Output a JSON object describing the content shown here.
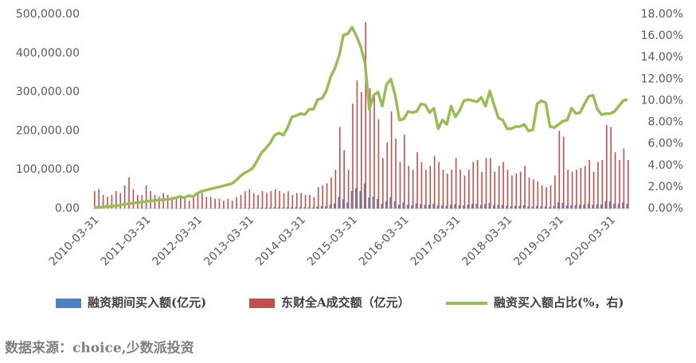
{
  "chart_data": {
    "type": "bar-line",
    "source": "数据来源：choice,少数派投资",
    "categories": [
      "2010-03-31",
      null,
      null,
      null,
      null,
      null,
      null,
      null,
      null,
      null,
      null,
      null,
      "2011-03-31",
      null,
      null,
      null,
      null,
      null,
      null,
      null,
      null,
      null,
      null,
      null,
      "2012-03-31",
      null,
      null,
      null,
      null,
      null,
      null,
      null,
      null,
      null,
      null,
      null,
      "2013-03-31",
      null,
      null,
      null,
      null,
      null,
      null,
      null,
      null,
      null,
      null,
      null,
      "2014-03-31",
      null,
      null,
      null,
      null,
      null,
      null,
      null,
      null,
      null,
      null,
      null,
      "2015-03-31",
      null,
      null,
      null,
      null,
      null,
      null,
      null,
      null,
      null,
      null,
      null,
      "2016-03-31",
      null,
      null,
      null,
      null,
      null,
      null,
      null,
      null,
      null,
      null,
      null,
      "2017-03-31",
      null,
      null,
      null,
      null,
      null,
      null,
      null,
      null,
      null,
      null,
      null,
      "2018-03-31",
      null,
      null,
      null,
      null,
      null,
      null,
      null,
      null,
      null,
      null,
      null,
      "2019-03-31",
      null,
      null,
      null,
      null,
      null,
      null,
      null,
      null,
      null,
      null,
      null,
      "2020-03-31",
      null,
      null,
      null,
      null
    ],
    "series": [
      {
        "name": "融资期间买入额(亿元)",
        "color": "#4f81bd",
        "kind": "bar",
        "axis": "y",
        "values": [
          50,
          50,
          50,
          60,
          70,
          110,
          120,
          240,
          360,
          250,
          190,
          210,
          390,
          320,
          260,
          240,
          320,
          300,
          270,
          300,
          390,
          300,
          240,
          390,
          560,
          640,
          510,
          540,
          480,
          500,
          420,
          550,
          460,
          780,
          1050,
          1490,
          1750,
          1520,
          1580,
          2340,
          2240,
          2750,
          3400,
          3150,
          2720,
          3380,
          2980,
          3440,
          3520,
          3050,
          3220,
          2760,
          5560,
          6120,
          7090,
          9760,
          13000,
          29820,
          24150,
          16200,
          45360,
          52800,
          45000,
          64800,
          28520,
          30450,
          24840,
          12350,
          19550,
          30000,
          18900,
          9840,
          15770,
          9900,
          8900,
          13050,
          11640,
          9600,
          9790,
          12560,
          8880,
          8200,
          7020,
          9500,
          11050,
          9100,
          8500,
          10100,
          12000,
          12380,
          9790,
          12350,
          14170,
          9120,
          9240,
          9840,
          7400,
          6290,
          6840,
          7220,
          8580,
          5760,
          5480,
          6790,
          6000,
          5390,
          4560,
          6380,
          15600,
          14990,
          8200,
          8840,
          8800,
          9350,
          10670,
          13000,
          9980,
          11040,
          10880,
          18920,
          18480,
          13050,
          11880,
          15500,
          12630
        ]
      },
      {
        "name": "东财全A成交额（亿元）",
        "color": "#c0504d",
        "kind": "bar",
        "axis": "y",
        "values": [
          45000,
          50000,
          35000,
          30000,
          35000,
          45000,
          40000,
          60000,
          80000,
          50000,
          35000,
          35000,
          60000,
          45000,
          35000,
          30000,
          40000,
          35000,
          30000,
          30000,
          35000,
          30000,
          20000,
          35000,
          40000,
          40000,
          30000,
          30000,
          25000,
          25000,
          20000,
          25000,
          20000,
          30000,
          35000,
          45000,
          50000,
          40000,
          35000,
          45000,
          40000,
          45000,
          50000,
          45000,
          40000,
          45000,
          35000,
          40000,
          40000,
          35000,
          35000,
          30000,
          55000,
          60000,
          65000,
          80000,
          100000,
          210000,
          150000,
          100000,
          270000,
          330000,
          300000,
          480000,
          310000,
          290000,
          230000,
          130000,
          170000,
          250000,
          180000,
          120000,
          190000,
          110000,
          100000,
          145000,
          120000,
          100000,
          110000,
          135000,
          120000,
          100000,
          90000,
          100000,
          130000,
          100000,
          85000,
          100000,
          120000,
          125000,
          95000,
          130000,
          130000,
          95000,
          110000,
          120000,
          100000,
          85000,
          90000,
          95000,
          110000,
          80000,
          75000,
          70000,
          60000,
          55000,
          60000,
          85000,
          200000,
          185000,
          100000,
          95000,
          100000,
          105000,
          110000,
          125000,
          95000,
          120000,
          125000,
          215000,
          210000,
          145000,
          125000,
          155000,
          125000
        ]
      },
      {
        "name": "融资买入额占比(%，右)",
        "color": "#9bbb59",
        "kind": "line",
        "axis": "y2",
        "values": [
          0.1,
          0.1,
          0.15,
          0.2,
          0.2,
          0.25,
          0.3,
          0.4,
          0.45,
          0.5,
          0.55,
          0.6,
          0.65,
          0.7,
          0.75,
          0.8,
          0.8,
          0.85,
          0.9,
          1.0,
          1.1,
          1.0,
          1.2,
          1.1,
          1.4,
          1.6,
          1.7,
          1.8,
          1.9,
          2.0,
          2.1,
          2.2,
          2.3,
          2.6,
          3.0,
          3.3,
          3.5,
          3.8,
          4.5,
          5.2,
          5.6,
          6.1,
          6.8,
          7.0,
          6.8,
          7.5,
          8.5,
          8.6,
          8.8,
          8.7,
          9.2,
          9.2,
          10.1,
          10.2,
          10.9,
          12.2,
          13.0,
          14.2,
          16.1,
          16.2,
          16.8,
          16.0,
          15.0,
          13.5,
          9.2,
          10.5,
          10.8,
          9.5,
          11.5,
          12.0,
          10.5,
          8.2,
          8.3,
          9.0,
          8.9,
          9.0,
          9.7,
          9.6,
          8.9,
          9.3,
          7.4,
          8.2,
          7.8,
          9.5,
          8.5,
          9.1,
          10.0,
          10.1,
          10.0,
          9.9,
          10.3,
          9.5,
          10.9,
          9.6,
          8.4,
          8.2,
          7.4,
          7.4,
          7.6,
          7.6,
          7.8,
          7.2,
          7.3,
          9.7,
          10.0,
          9.8,
          7.6,
          7.5,
          7.8,
          8.1,
          8.2,
          9.3,
          8.8,
          8.9,
          9.7,
          10.4,
          10.5,
          9.2,
          8.7,
          8.8,
          8.8,
          9.0,
          9.5,
          10.0,
          10.1
        ]
      }
    ],
    "ylim": [
      0,
      500000
    ],
    "yticks": [
      {
        "value": 0,
        "label": "0.00"
      },
      {
        "value": 100000,
        "label": "100,000.00"
      },
      {
        "value": 200000,
        "label": "200,000.00"
      },
      {
        "value": 300000,
        "label": "300,000.00"
      },
      {
        "value": 400000,
        "label": "400,000.00"
      },
      {
        "value": 500000,
        "label": "500,000.00"
      }
    ],
    "y2lim": [
      0,
      18
    ],
    "y2ticks": [
      {
        "value": 0,
        "label": "0.00%"
      },
      {
        "value": 2,
        "label": "2.00%"
      },
      {
        "value": 4,
        "label": "4.00%"
      },
      {
        "value": 6,
        "label": "6.00%"
      },
      {
        "value": 8,
        "label": "8.00%"
      },
      {
        "value": 10,
        "label": "10.00%"
      },
      {
        "value": 12,
        "label": "12.00%"
      },
      {
        "value": 14,
        "label": "14.00%"
      },
      {
        "value": 16,
        "label": "16.00%"
      },
      {
        "value": 18,
        "label": "18.00%"
      }
    ],
    "grid": false,
    "legend": "bottom"
  }
}
